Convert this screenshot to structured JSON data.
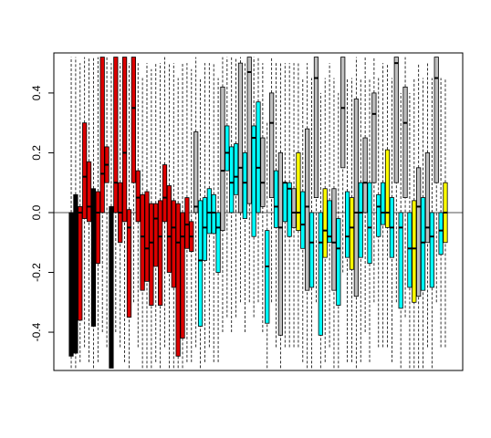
{
  "chart_data": {
    "type": "boxplot",
    "ylim": [
      -0.528,
      0.534
    ],
    "yticks": [
      -0.4,
      -0.2,
      {
        "value": 0,
        "label": "0.0"
      },
      0.2,
      0.4
    ],
    "boxes": [
      [
        -0.52,
        -0.48,
        -0.18,
        0.0,
        0.52
      ],
      [
        -0.52,
        -0.47,
        -0.14,
        0.06,
        0.52
      ],
      [
        -0.5,
        -0.36,
        0.0,
        0.02,
        0.5
      ],
      [
        -0.45,
        -0.02,
        0.12,
        0.3,
        0.52
      ],
      [
        -0.5,
        -0.03,
        0.02,
        0.17,
        0.52
      ],
      [
        -0.52,
        -0.38,
        0.02,
        0.08,
        0.52
      ],
      [
        -0.5,
        -0.17,
        0.0,
        0.07,
        0.52
      ],
      [
        -0.4,
        0.0,
        0.13,
        0.52,
        0.52
      ],
      [
        -0.45,
        0.1,
        0.16,
        0.22,
        0.52
      ],
      [
        -0.52,
        -0.52,
        0.0,
        0.02,
        0.5
      ],
      [
        -0.4,
        0.0,
        0.1,
        0.52,
        0.52
      ],
      [
        -0.45,
        -0.1,
        0.0,
        0.1,
        0.5
      ],
      [
        -0.5,
        -0.03,
        0.2,
        0.52,
        0.52
      ],
      [
        -0.52,
        -0.35,
        -0.05,
        0.01,
        0.5
      ],
      [
        -0.3,
        0.1,
        0.35,
        0.52,
        0.52
      ],
      [
        -0.45,
        -0.03,
        0.05,
        0.14,
        0.5
      ],
      [
        -0.52,
        -0.26,
        -0.08,
        0.06,
        0.45
      ],
      [
        -0.52,
        -0.23,
        -0.12,
        0.07,
        0.5
      ],
      [
        -0.52,
        -0.31,
        -0.1,
        0.03,
        0.48
      ],
      [
        -0.5,
        -0.18,
        -0.02,
        0.03,
        0.5
      ],
      [
        -0.52,
        -0.31,
        -0.08,
        0.04,
        0.5
      ],
      [
        -0.45,
        -0.03,
        0.05,
        0.16,
        0.52
      ],
      [
        -0.52,
        -0.2,
        -0.08,
        0.09,
        0.5
      ],
      [
        -0.52,
        -0.25,
        -0.05,
        0.04,
        0.5
      ],
      [
        -0.52,
        -0.48,
        -0.1,
        0.03,
        0.45
      ],
      [
        -0.52,
        -0.42,
        -0.08,
        0.0,
        0.5
      ],
      [
        -0.5,
        -0.12,
        -0.04,
        0.05,
        0.5
      ],
      [
        -0.5,
        -0.13,
        -0.08,
        -0.03,
        0.48
      ],
      [
        -0.45,
        0.0,
        0.02,
        0.27,
        0.52
      ],
      [
        -0.52,
        -0.38,
        -0.16,
        0.04,
        0.45
      ],
      [
        -0.5,
        -0.16,
        -0.05,
        0.05,
        0.5
      ],
      [
        -0.45,
        -0.07,
        0.0,
        0.08,
        0.5
      ],
      [
        -0.5,
        -0.07,
        0.0,
        0.06,
        0.5
      ],
      [
        -0.5,
        -0.2,
        -0.05,
        0.0,
        0.45
      ],
      [
        -0.4,
        -0.06,
        0.14,
        0.42,
        0.52
      ],
      [
        -0.35,
        0.14,
        0.2,
        0.29,
        0.52
      ],
      [
        -0.4,
        0.0,
        0.1,
        0.22,
        0.52
      ],
      [
        -0.35,
        0.06,
        0.12,
        0.23,
        0.52
      ],
      [
        -0.3,
        0.0,
        0.15,
        0.5,
        0.52
      ],
      [
        -0.4,
        -0.02,
        0.1,
        0.2,
        0.5
      ],
      [
        -0.3,
        0.03,
        0.47,
        0.52,
        0.52
      ],
      [
        -0.35,
        -0.08,
        0.25,
        0.29,
        0.52
      ],
      [
        -0.3,
        0.0,
        0.15,
        0.37,
        0.52
      ],
      [
        -0.4,
        0.02,
        0.1,
        0.25,
        0.5
      ],
      [
        -0.52,
        -0.37,
        -0.18,
        -0.06,
        0.3
      ],
      [
        -0.3,
        0.05,
        0.3,
        0.4,
        0.52
      ],
      [
        -0.45,
        -0.05,
        0.02,
        0.14,
        0.5
      ],
      [
        -0.52,
        -0.41,
        -0.05,
        0.2,
        0.5
      ],
      [
        -0.45,
        -0.03,
        0.1,
        0.1,
        0.5
      ],
      [
        -0.45,
        -0.08,
        0.08,
        0.1,
        0.5
      ],
      [
        -0.45,
        -0.05,
        0.0,
        0.08,
        0.5
      ],
      [
        -0.45,
        -0.06,
        0.0,
        0.2,
        0.5
      ],
      [
        -0.5,
        -0.12,
        -0.04,
        0.07,
        0.45
      ],
      [
        -0.52,
        -0.26,
        0.02,
        0.28,
        0.5
      ],
      [
        -0.52,
        -0.25,
        -0.1,
        0.0,
        0.45
      ],
      [
        -0.3,
        0.05,
        0.45,
        0.52,
        0.52
      ],
      [
        -0.52,
        -0.41,
        -0.1,
        0.0,
        0.4
      ],
      [
        -0.5,
        -0.15,
        -0.06,
        0.08,
        0.45
      ],
      [
        -0.45,
        -0.1,
        -0.08,
        0.04,
        0.5
      ],
      [
        -0.52,
        -0.26,
        -0.1,
        0.08,
        0.45
      ],
      [
        -0.52,
        -0.31,
        -0.12,
        -0.02,
        0.4
      ],
      [
        -0.2,
        0.15,
        0.35,
        0.52,
        0.52
      ],
      [
        -0.5,
        -0.15,
        -0.08,
        0.07,
        0.45
      ],
      [
        -0.5,
        -0.19,
        -0.05,
        0.05,
        0.45
      ],
      [
        -0.52,
        -0.28,
        0.0,
        0.38,
        0.52
      ],
      [
        -0.5,
        -0.15,
        0.0,
        0.1,
        0.45
      ],
      [
        -0.4,
        0.0,
        0.1,
        0.25,
        0.52
      ],
      [
        -0.5,
        -0.17,
        -0.05,
        0.1,
        0.45
      ],
      [
        -0.3,
        0.1,
        0.33,
        0.4,
        0.52
      ],
      [
        -0.45,
        -0.08,
        0.02,
        0.06,
        0.45
      ],
      [
        -0.45,
        -0.04,
        0.0,
        0.1,
        0.5
      ],
      [
        -0.45,
        -0.05,
        0.0,
        0.21,
        0.5
      ],
      [
        -0.5,
        -0.15,
        -0.05,
        0.05,
        0.45
      ],
      [
        -0.3,
        0.1,
        0.5,
        0.52,
        0.52
      ],
      [
        -0.52,
        -0.32,
        -0.05,
        0.0,
        0.4
      ],
      [
        -0.35,
        0.05,
        0.3,
        0.42,
        0.52
      ],
      [
        -0.52,
        -0.25,
        -0.12,
        0.0,
        0.4
      ],
      [
        -0.52,
        -0.3,
        -0.12,
        0.04,
        0.45
      ],
      [
        -0.52,
        -0.28,
        0.02,
        0.15,
        0.5
      ],
      [
        -0.52,
        -0.26,
        -0.1,
        0.05,
        0.45
      ],
      [
        -0.45,
        -0.1,
        -0.05,
        0.2,
        0.5
      ],
      [
        -0.52,
        -0.25,
        -0.08,
        0.0,
        0.45
      ],
      [
        -0.3,
        0.1,
        0.45,
        0.52,
        0.52
      ],
      [
        -0.45,
        -0.14,
        -0.06,
        0.0,
        0.45
      ],
      [
        -0.45,
        -0.1,
        0.0,
        0.1,
        0.45
      ]
    ],
    "colors": [
      "#000000",
      "#000000",
      "#dd0000",
      "#dd0000",
      "#dd0000",
      "#000000",
      "#dd0000",
      "#dd0000",
      "#dd0000",
      "#000000",
      "#dd0000",
      "#dd0000",
      "#dd0000",
      "#dd0000",
      "#dd0000",
      "#dd0000",
      "#dd0000",
      "#dd0000",
      "#dd0000",
      "#dd0000",
      "#dd0000",
      "#dd0000",
      "#dd0000",
      "#dd0000",
      "#dd0000",
      "#dd0000",
      "#dd0000",
      "#dd0000",
      "#bebebe",
      "#00ffff",
      "#00ffff",
      "#00ffff",
      "#00ffff",
      "#00ffff",
      "#bebebe",
      "#00ffff",
      "#00ffff",
      "#00ffff",
      "#bebebe",
      "#00ffff",
      "#bebebe",
      "#00ffff",
      "#00ffff",
      "#bebebe",
      "#00ffff",
      "#bebebe",
      "#00ffff",
      "#bebebe",
      "#00ffff",
      "#00ffff",
      "#bebebe",
      "#ffff00",
      "#00ffff",
      "#bebebe",
      "#00ffff",
      "#bebebe",
      "#00ffff",
      "#ffff00",
      "#00ffff",
      "#bebebe",
      "#00ffff",
      "#bebebe",
      "#00ffff",
      "#ffff00",
      "#bebebe",
      "#00ffff",
      "#bebebe",
      "#00ffff",
      "#bebebe",
      "#00ffff",
      "#00ffff",
      "#ffff00",
      "#00ffff",
      "#bebebe",
      "#00ffff",
      "#bebebe",
      "#00ffff",
      "#ffff00",
      "#bebebe",
      "#00ffff",
      "#bebebe",
      "#00ffff",
      "#bebebe",
      "#00ffff",
      "#ffff00"
    ]
  }
}
